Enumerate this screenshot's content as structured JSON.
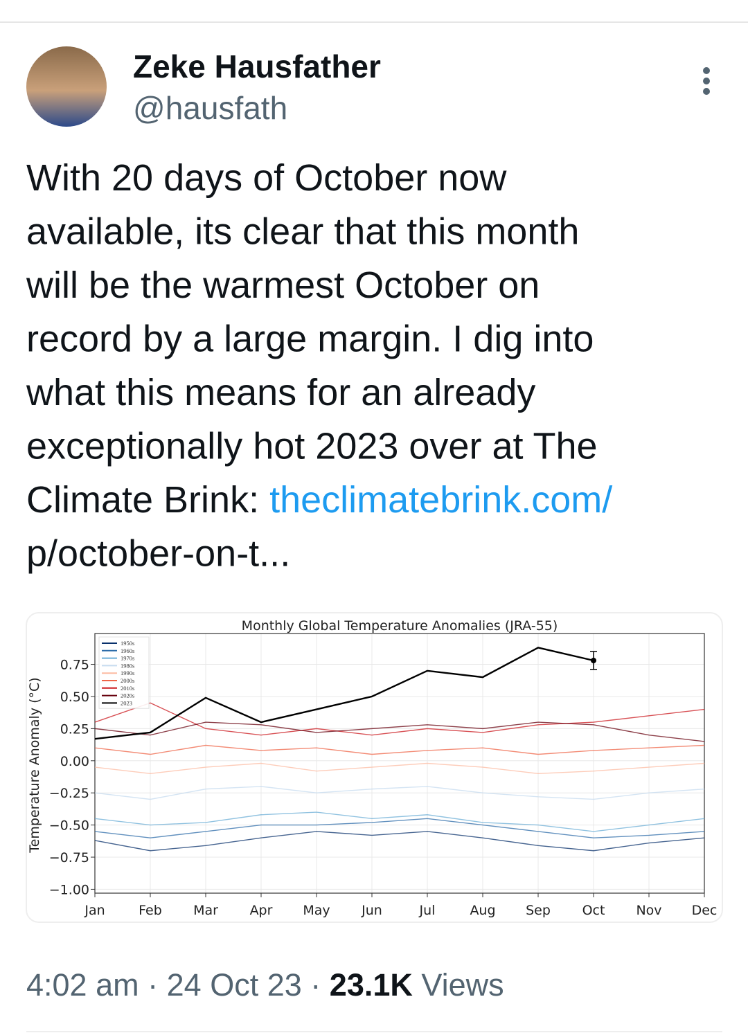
{
  "header": {
    "name": "Zeke Hausfather",
    "handle": "@hausfath"
  },
  "tweet": {
    "text_lines": [
      "With 20 days of October now",
      "available, its clear that this month",
      "will be the warmest October on",
      "record by a large margin. I dig into",
      "what this means for an already",
      "exceptionally hot 2023 over at The",
      "Climate Brink: "
    ],
    "link_lines": [
      "theclimatebrink.com/",
      "p/october-on-t..."
    ]
  },
  "chart_data": {
    "type": "line",
    "title": "Monthly Global Temperature Anomalies (JRA-55)",
    "ylabel": "Temperature Anomaly (°C)",
    "categories": [
      "Jan",
      "Feb",
      "Mar",
      "Apr",
      "May",
      "Jun",
      "Jul",
      "Aug",
      "Sep",
      "Oct",
      "Nov",
      "Dec"
    ],
    "ylim": [
      -1.03,
      0.99
    ],
    "yticks": [
      {
        "value": -1.0,
        "label": "−1.00"
      },
      {
        "value": -0.75,
        "label": "−0.75"
      },
      {
        "value": -0.5,
        "label": "−0.50"
      },
      {
        "value": -0.25,
        "label": "−0.25"
      },
      {
        "value": 0,
        "label": "0.00"
      },
      0.25,
      {
        "value": 0.5,
        "label": "0.50"
      },
      0.75
    ],
    "grid": true,
    "legend": "upper left",
    "series": [
      {
        "name": "1950s",
        "color": "#08306b",
        "values": [
          -0.62,
          -0.7,
          -0.66,
          -0.6,
          -0.55,
          -0.58,
          -0.55,
          -0.6,
          -0.66,
          -0.7,
          -0.64,
          -0.6
        ]
      },
      {
        "name": "1960s",
        "color": "#2c6ba8",
        "values": [
          -0.55,
          -0.6,
          -0.55,
          -0.5,
          -0.5,
          -0.48,
          -0.45,
          -0.5,
          -0.55,
          -0.6,
          -0.58,
          -0.55
        ]
      },
      {
        "name": "1970s",
        "color": "#6baed6",
        "values": [
          -0.45,
          -0.5,
          -0.48,
          -0.42,
          -0.4,
          -0.45,
          -0.42,
          -0.48,
          -0.5,
          -0.55,
          -0.5,
          -0.45
        ]
      },
      {
        "name": "1980s",
        "color": "#c6dbef",
        "values": [
          -0.25,
          -0.3,
          -0.22,
          -0.2,
          -0.25,
          -0.22,
          -0.2,
          -0.25,
          -0.28,
          -0.3,
          -0.25,
          -0.22
        ]
      },
      {
        "name": "1990s",
        "color": "#fcbba1",
        "values": [
          -0.05,
          -0.1,
          -0.05,
          -0.02,
          -0.08,
          -0.05,
          -0.02,
          -0.05,
          -0.1,
          -0.08,
          -0.05,
          -0.02
        ]
      },
      {
        "name": "2000s",
        "color": "#ef6548",
        "values": [
          0.1,
          0.05,
          0.12,
          0.08,
          0.1,
          0.05,
          0.08,
          0.1,
          0.05,
          0.08,
          0.1,
          0.12
        ]
      },
      {
        "name": "2010s",
        "color": "#cb181d",
        "values": [
          0.3,
          0.45,
          0.25,
          0.2,
          0.25,
          0.2,
          0.25,
          0.22,
          0.28,
          0.3,
          0.35,
          0.4
        ]
      },
      {
        "name": "2020s",
        "color": "#67000d",
        "values": [
          0.25,
          0.2,
          0.3,
          0.28,
          0.22,
          0.25,
          0.28,
          0.25,
          0.3,
          0.28,
          0.2,
          0.15
        ]
      },
      {
        "name": "2023",
        "color": "#000000",
        "values": [
          0.17,
          0.22,
          0.49,
          0.3,
          0.4,
          0.5,
          0.7,
          0.65,
          0.88,
          0.78,
          null,
          null
        ],
        "errors": [
          null,
          null,
          null,
          null,
          null,
          null,
          null,
          null,
          null,
          0.07,
          null,
          null
        ]
      }
    ]
  },
  "footer": {
    "time": "4:02 am",
    "separator": "·",
    "date": "24 Oct 23",
    "views_count": "23.1K",
    "views_label": "Views"
  }
}
